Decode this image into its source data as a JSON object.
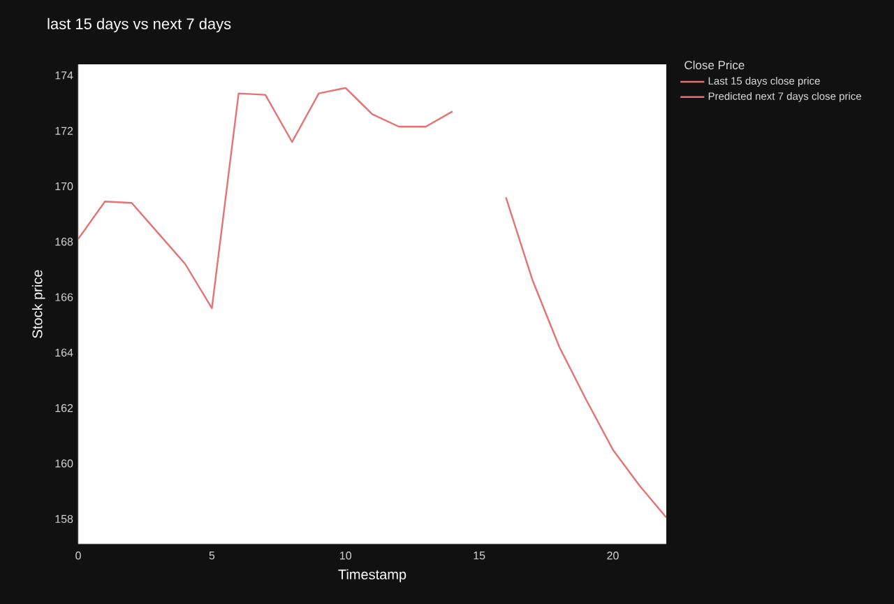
{
  "chart_data": {
    "type": "line",
    "title": "last 15 days vs next 7 days",
    "xlabel": "Timestamp",
    "ylabel": "Stock price",
    "legend_title": "Close Price",
    "legend": "top right",
    "series": [
      {
        "name": "Last 15 days close price",
        "color": "#e57373",
        "x": [
          0,
          1,
          2,
          3,
          4,
          5,
          6,
          7,
          8,
          9,
          10,
          11,
          12,
          13,
          14
        ],
        "values": [
          168.1,
          169.45,
          169.4,
          168.3,
          167.2,
          165.6,
          173.35,
          173.3,
          171.6,
          173.35,
          173.55,
          172.6,
          172.15,
          172.15,
          172.7
        ]
      },
      {
        "name": "Predicted next 7 days close price",
        "color": "#e57373",
        "x": [
          16,
          17,
          18,
          19,
          20,
          21,
          22
        ],
        "values": [
          169.6,
          166.6,
          164.2,
          162.3,
          160.5,
          159.2,
          158.05
        ]
      }
    ],
    "xlim": [
      0,
      22
    ],
    "ylim": [
      157.1,
      174.4
    ],
    "xticks": [
      0,
      5,
      10,
      15,
      20
    ],
    "yticks": [
      158,
      160,
      162,
      164,
      166,
      168,
      170,
      172,
      174
    ]
  }
}
